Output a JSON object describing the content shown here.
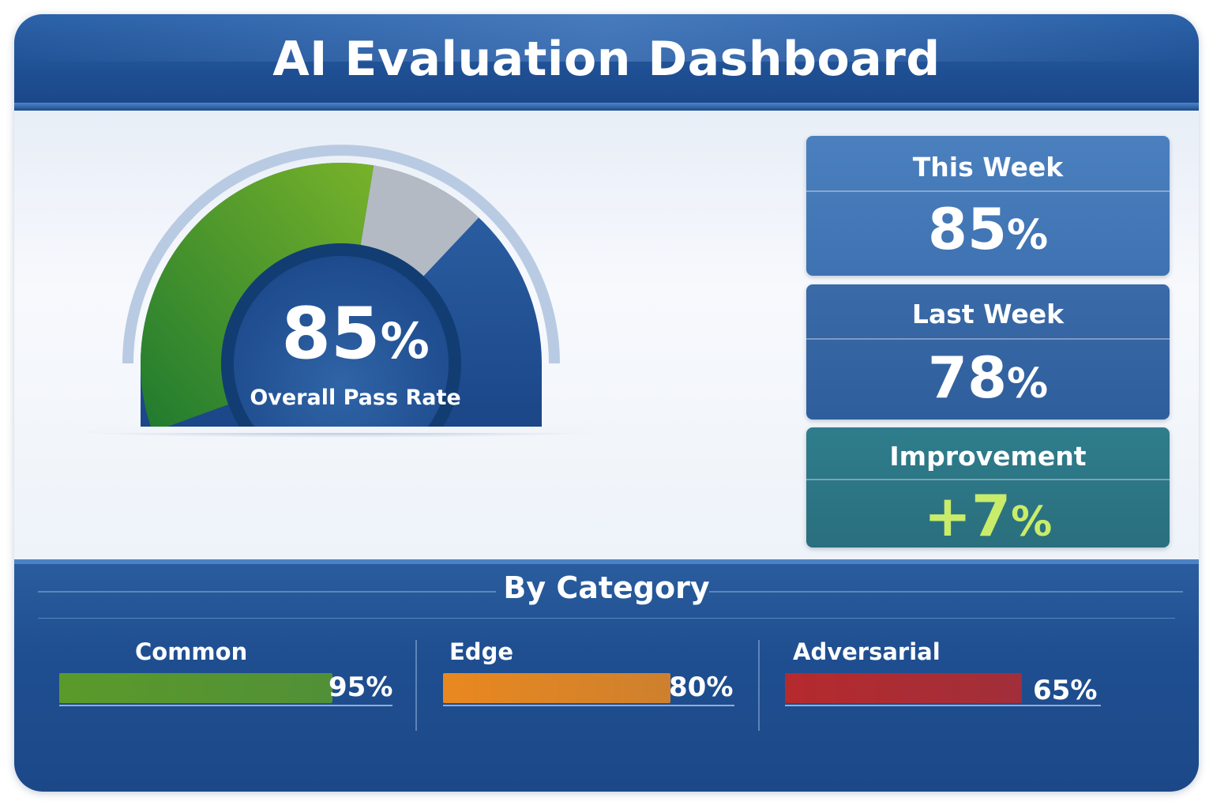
{
  "header": {
    "title": "AI Evaluation Dashboard"
  },
  "gauge": {
    "value": "85",
    "unit": "%",
    "fraction": 0.85,
    "label": "Overall Pass Rate",
    "fill_color": "#5aa22c",
    "remainder_color": "#b3bac3"
  },
  "cards": [
    {
      "label": "This Week",
      "value": "85",
      "unit": "%"
    },
    {
      "label": "Last Week",
      "value": "78",
      "unit": "%"
    },
    {
      "label": "Improvement",
      "value": "+7",
      "unit": "%"
    }
  ],
  "categories": {
    "title": "By Category",
    "items": [
      {
        "name": "Common",
        "percent_label": "95%",
        "value": 0.95,
        "color": "#5a9a2a"
      },
      {
        "name": "Edge",
        "percent_label": "80%",
        "value": 0.8,
        "color": "#e9881f"
      },
      {
        "name": "Adversarial",
        "percent_label": "65%",
        "value": 0.65,
        "color": "#b52a2d"
      }
    ]
  }
}
